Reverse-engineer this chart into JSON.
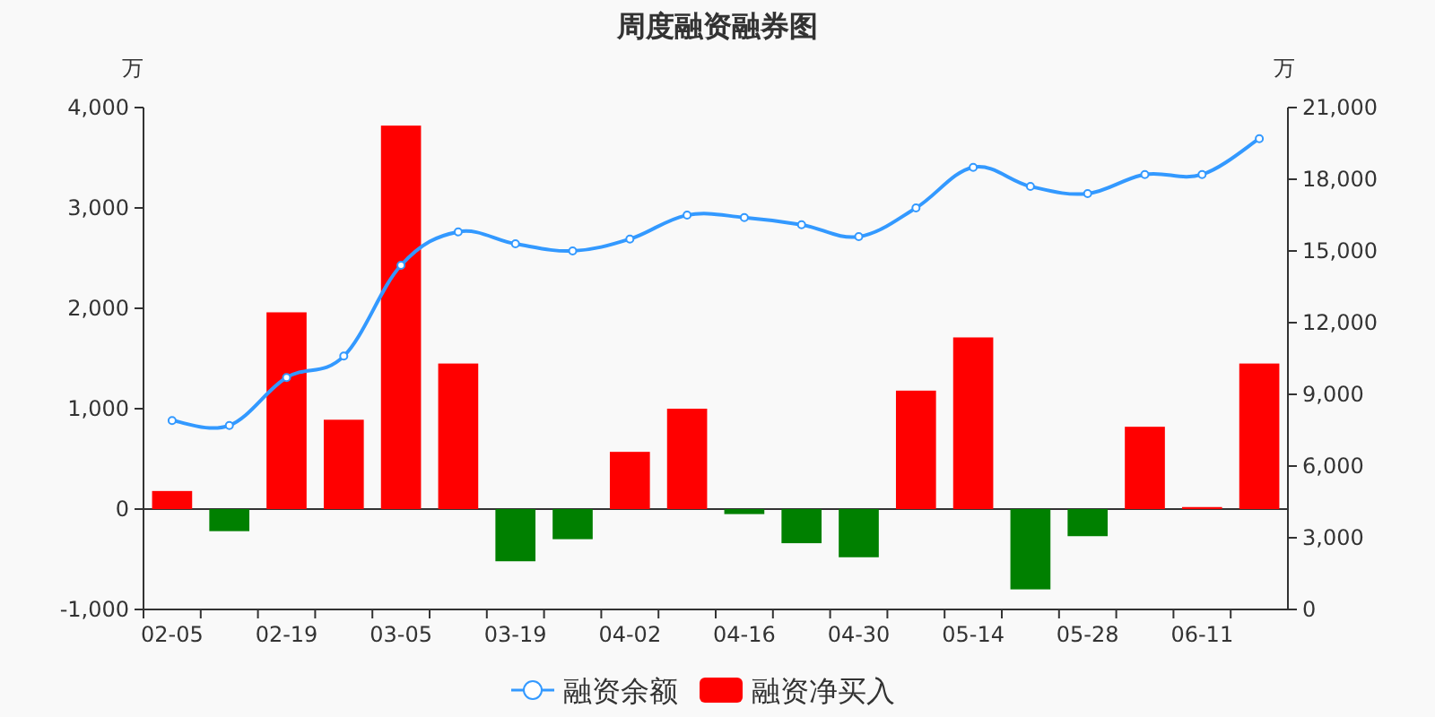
{
  "chart_data": {
    "type": "bar",
    "title": "周度融资融券图",
    "ylabel": "万",
    "y2label": "万",
    "categories": [
      "02-05",
      null,
      "02-19",
      null,
      "03-05",
      null,
      "03-19",
      null,
      "04-02",
      null,
      "04-16",
      null,
      "04-30",
      null,
      "05-14",
      null,
      "05-28",
      null,
      "06-11",
      null
    ],
    "series": [
      {
        "name": "融资余额",
        "type": "line",
        "axis": "y2",
        "color": "#3399ff",
        "marker": "circle",
        "values": [
          7900,
          7700,
          9700,
          10600,
          14400,
          15800,
          15300,
          15000,
          15500,
          16500,
          16400,
          16100,
          15600,
          16800,
          18500,
          17700,
          17400,
          18200,
          18200,
          19700
        ]
      },
      {
        "name": "融资净买入",
        "color": "#ff0000",
        "colors": [
          "#ff0000",
          "#008000",
          "#ff0000",
          "#ff0000",
          "#ff0000",
          "#ff0000",
          "#008000",
          "#008000",
          "#ff0000",
          "#ff0000",
          "#008000",
          "#008000",
          "#008000",
          "#ff0000",
          "#ff0000",
          "#008000",
          "#008000",
          "#ff0000",
          "#ff0000",
          "#ff0000"
        ],
        "values": [
          180,
          -220,
          1960,
          890,
          3820,
          1450,
          -520,
          -300,
          570,
          1000,
          -50,
          -340,
          -480,
          1180,
          1710,
          -800,
          -270,
          820,
          20,
          1450
        ]
      }
    ],
    "ylim": [
      -1000,
      4000
    ],
    "yticks": [
      {
        "value": -1000,
        "label": "-1,000"
      },
      0,
      {
        "value": 1000,
        "label": "1,000"
      },
      {
        "value": 2000,
        "label": "2,000"
      },
      {
        "value": 3000,
        "label": "3,000"
      },
      {
        "value": 4000,
        "label": "4,000"
      }
    ],
    "y2lim": [
      0,
      21000
    ],
    "y2ticks": [
      0,
      {
        "value": 3000,
        "label": "3,000"
      },
      {
        "value": 6000,
        "label": "6,000"
      },
      {
        "value": 9000,
        "label": "9,000"
      },
      {
        "value": 12000,
        "label": "12,000"
      },
      {
        "value": 15000,
        "label": "15,000"
      },
      {
        "value": 18000,
        "label": "18,000"
      },
      {
        "value": 21000,
        "label": "21,000"
      }
    ],
    "legend": "bottom"
  }
}
